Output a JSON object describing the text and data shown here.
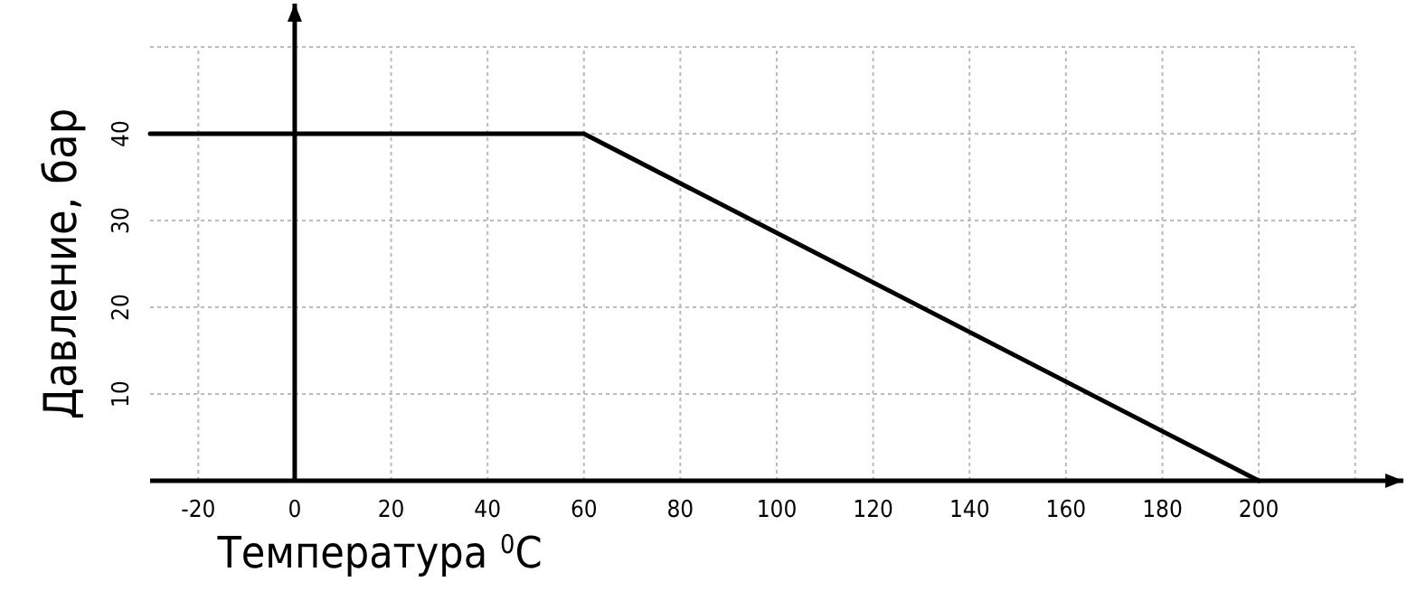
{
  "chart_data": {
    "type": "line",
    "xlabel": "Температура $^{0}$C",
    "ylabel": "Давление, бар",
    "x": [
      -30,
      60,
      200
    ],
    "series": [
      {
        "color": "#000000",
        "values": [
          40,
          40,
          0
        ]
      }
    ],
    "xlim": [
      -30,
      230
    ],
    "ylim": [
      0,
      55
    ],
    "xticks": [
      -20,
      0,
      20,
      40,
      60,
      80,
      100,
      120,
      140,
      160,
      180,
      200,
      {
        "value": 220,
        "label": null
      }
    ],
    "yticks": [
      10,
      20,
      30,
      40,
      {
        "value": 50,
        "label": null
      }
    ],
    "grid": true
  }
}
